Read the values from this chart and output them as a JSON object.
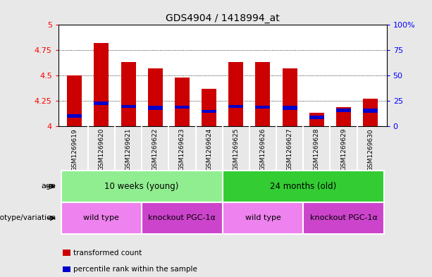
{
  "title": "GDS4904 / 1418994_at",
  "samples": [
    "GSM1269619",
    "GSM1269620",
    "GSM1269621",
    "GSM1269622",
    "GSM1269623",
    "GSM1269624",
    "GSM1269625",
    "GSM1269626",
    "GSM1269627",
    "GSM1269628",
    "GSM1269629",
    "GSM1269630"
  ],
  "transformed_count": [
    4.5,
    4.82,
    4.63,
    4.57,
    4.48,
    4.37,
    4.63,
    4.63,
    4.57,
    4.13,
    4.19,
    4.27
  ],
  "percentile_bottom": [
    4.08,
    4.21,
    4.18,
    4.16,
    4.17,
    4.13,
    4.18,
    4.17,
    4.16,
    4.07,
    4.14,
    4.13
  ],
  "percentile_top": [
    4.12,
    4.24,
    4.21,
    4.2,
    4.2,
    4.16,
    4.21,
    4.2,
    4.2,
    4.1,
    4.17,
    4.17
  ],
  "ymin": 4.0,
  "ymax": 5.0,
  "yticks": [
    4.0,
    4.25,
    4.5,
    4.75,
    5.0
  ],
  "ytick_labels": [
    "4",
    "4.25",
    "4.5",
    "4.75",
    "5"
  ],
  "right_yticks": [
    0,
    25,
    50,
    75,
    100
  ],
  "right_ytick_labels": [
    "0",
    "25",
    "50",
    "75",
    "100%"
  ],
  "bar_color": "#cc0000",
  "percentile_color": "#0000cc",
  "grid_color": "#000000",
  "age_groups": [
    {
      "label": "10 weeks (young)",
      "start": 0,
      "end": 6,
      "color": "#90ee90"
    },
    {
      "label": "24 months (old)",
      "start": 6,
      "end": 12,
      "color": "#33cc33"
    }
  ],
  "genotype_groups": [
    {
      "label": "wild type",
      "start": 0,
      "end": 3,
      "color": "#ee82ee"
    },
    {
      "label": "knockout PGC-1α",
      "start": 3,
      "end": 6,
      "color": "#cc44cc"
    },
    {
      "label": "wild type",
      "start": 6,
      "end": 9,
      "color": "#ee82ee"
    },
    {
      "label": "knockout PGC-1α",
      "start": 9,
      "end": 12,
      "color": "#cc44cc"
    }
  ],
  "legend_items": [
    {
      "label": "transformed count",
      "color": "#cc0000"
    },
    {
      "label": "percentile rank within the sample",
      "color": "#0000cc"
    }
  ],
  "bar_width": 0.55,
  "background_color": "#e8e8e8",
  "plot_bg_color": "#ffffff",
  "xticklabel_bg": "#d0d0d0"
}
